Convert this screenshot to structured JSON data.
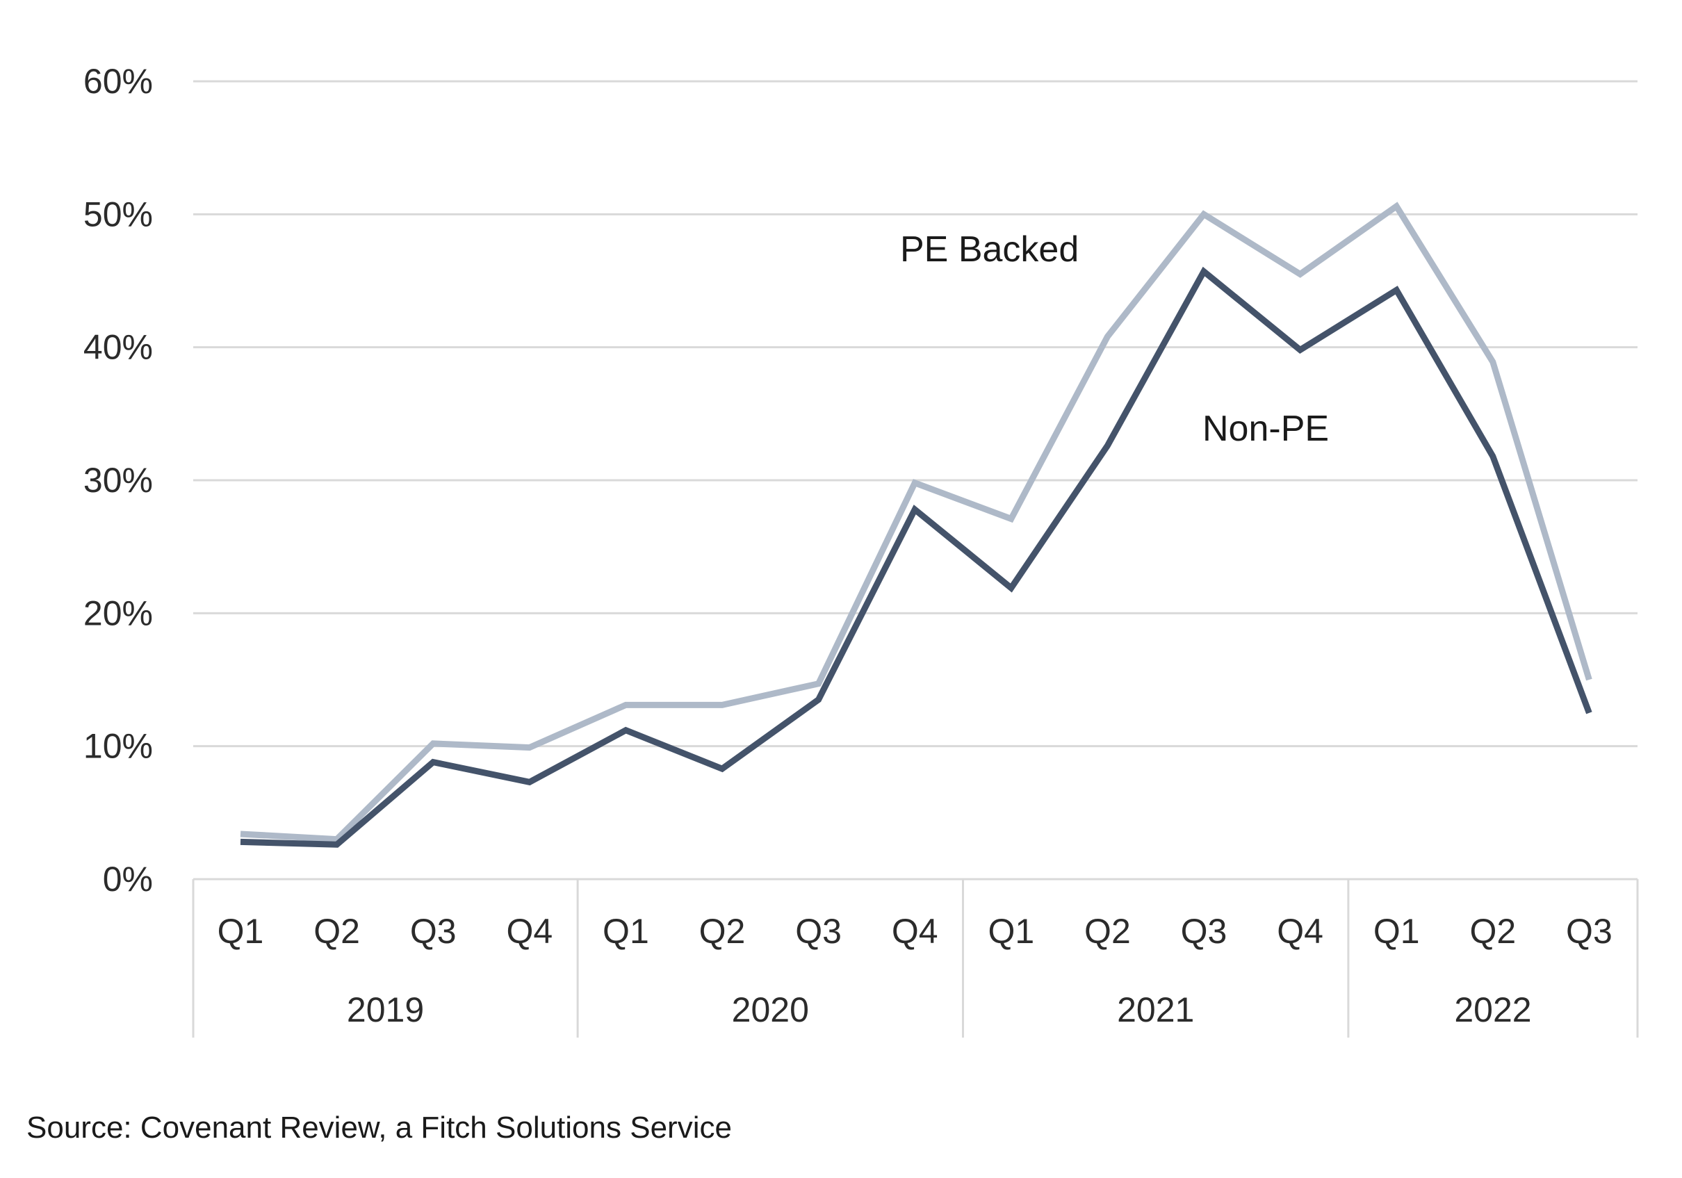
{
  "chart_data": {
    "type": "line",
    "title": "",
    "xlabel": "",
    "ylabel": "",
    "ylim": [
      0,
      60
    ],
    "yticks": [
      0,
      10,
      20,
      30,
      40,
      50,
      60
    ],
    "ytick_labels": [
      "0%",
      "10%",
      "20%",
      "30%",
      "40%",
      "50%",
      "60%"
    ],
    "grid": true,
    "legend": "inline labels",
    "groups": [
      {
        "label": "2019",
        "quarters": [
          "Q1",
          "Q2",
          "Q3",
          "Q4"
        ]
      },
      {
        "label": "2020",
        "quarters": [
          "Q1",
          "Q2",
          "Q3",
          "Q4"
        ]
      },
      {
        "label": "2021",
        "quarters": [
          "Q1",
          "Q2",
          "Q3",
          "Q4"
        ]
      },
      {
        "label": "2022",
        "quarters": [
          "Q1",
          "Q2",
          "Q3"
        ]
      }
    ],
    "series": [
      {
        "name": "PE Backed",
        "color": "#aeb9c8",
        "values": [
          3.4,
          3.0,
          10.2,
          9.9,
          13.1,
          13.1,
          14.7,
          29.8,
          27.1,
          40.8,
          50.0,
          45.5,
          50.6,
          38.9,
          15.0
        ]
      },
      {
        "name": "Non-PE",
        "color": "#44536a",
        "values": [
          2.8,
          2.6,
          8.8,
          7.3,
          11.2,
          8.3,
          13.5,
          27.8,
          21.9,
          32.6,
          45.7,
          39.8,
          44.3,
          31.8,
          12.5
        ]
      }
    ]
  },
  "source": "Source: Covenant Review, a Fitch Solutions Service",
  "colors": {
    "gridline": "#d9d9d9",
    "axis_text": "#2b2b2b"
  }
}
